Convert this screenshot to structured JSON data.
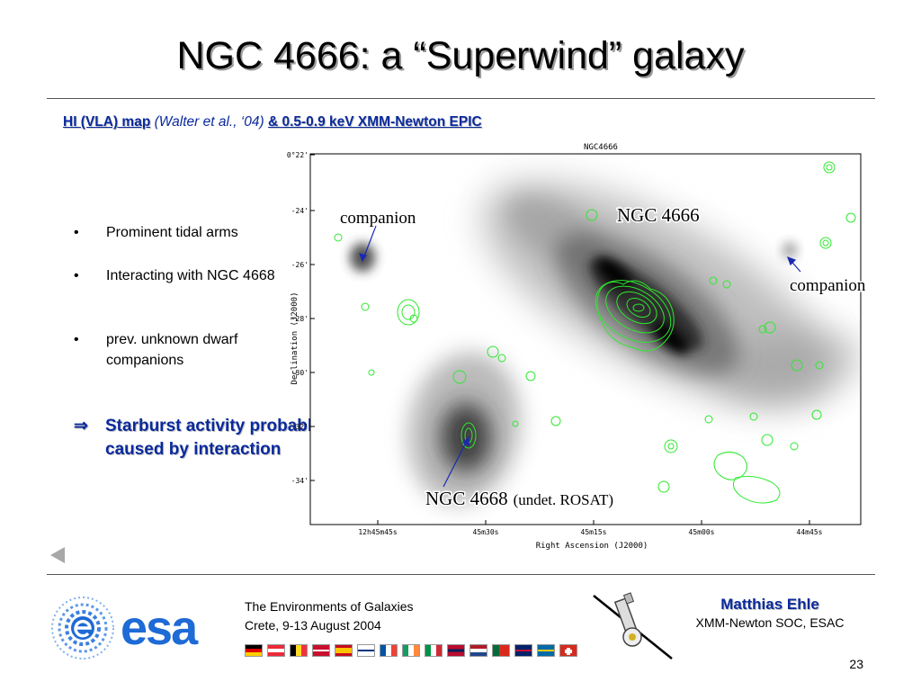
{
  "slide": {
    "title": "NGC 4666: a “Superwind” galaxy",
    "subtitle": {
      "part1": "HI (VLA) map",
      "part2": " (Walter et al., ‘04)",
      "part3": "& 0.5-0.9 keV XMM-Newton EPIC"
    },
    "bullets": [
      "Prominent tidal arms",
      "Interacting with NGC 4668",
      "prev. unknown dwarf companions"
    ],
    "bullet_char": "•",
    "conclusion": {
      "arrow": "⇒",
      "text": "Starburst activity probably caused by interaction"
    },
    "page_number": "23"
  },
  "figure": {
    "plot_title": "NGC4666",
    "y_axis_label": "Declination (J2000)",
    "x_axis_label": "Right Ascension (J2000)",
    "y_ticks": [
      "-0°22'",
      "-24'",
      "-26'",
      "-28'",
      "-30'",
      "-32'",
      "-34'"
    ],
    "x_ticks": [
      "12h45m45s",
      "45m30s",
      "45m15s",
      "45m00s",
      "44m45s"
    ],
    "annotations": {
      "companion_left": "companion",
      "ngc4666": "NGC 4666",
      "companion_right": "companion",
      "ngc4668_name": "NGC 4668",
      "ngc4668_note": "(undet. ROSAT)"
    },
    "colors": {
      "contour": "#2ee82e",
      "annotation_line": "#1a2ab0"
    }
  },
  "footer": {
    "logo_text": "esa",
    "conference_line1": "The Environments of Galaxies",
    "conference_line2": "Crete, 9-13 August 2004",
    "author_name": "Matthias Ehle",
    "author_affiliation": "XMM-Newton SOC, ESAC"
  },
  "colors": {
    "title_text": "#000000",
    "accent_blue": "#0a2a9c",
    "esa_blue": "#1e6ad6",
    "rule": "#555555"
  }
}
